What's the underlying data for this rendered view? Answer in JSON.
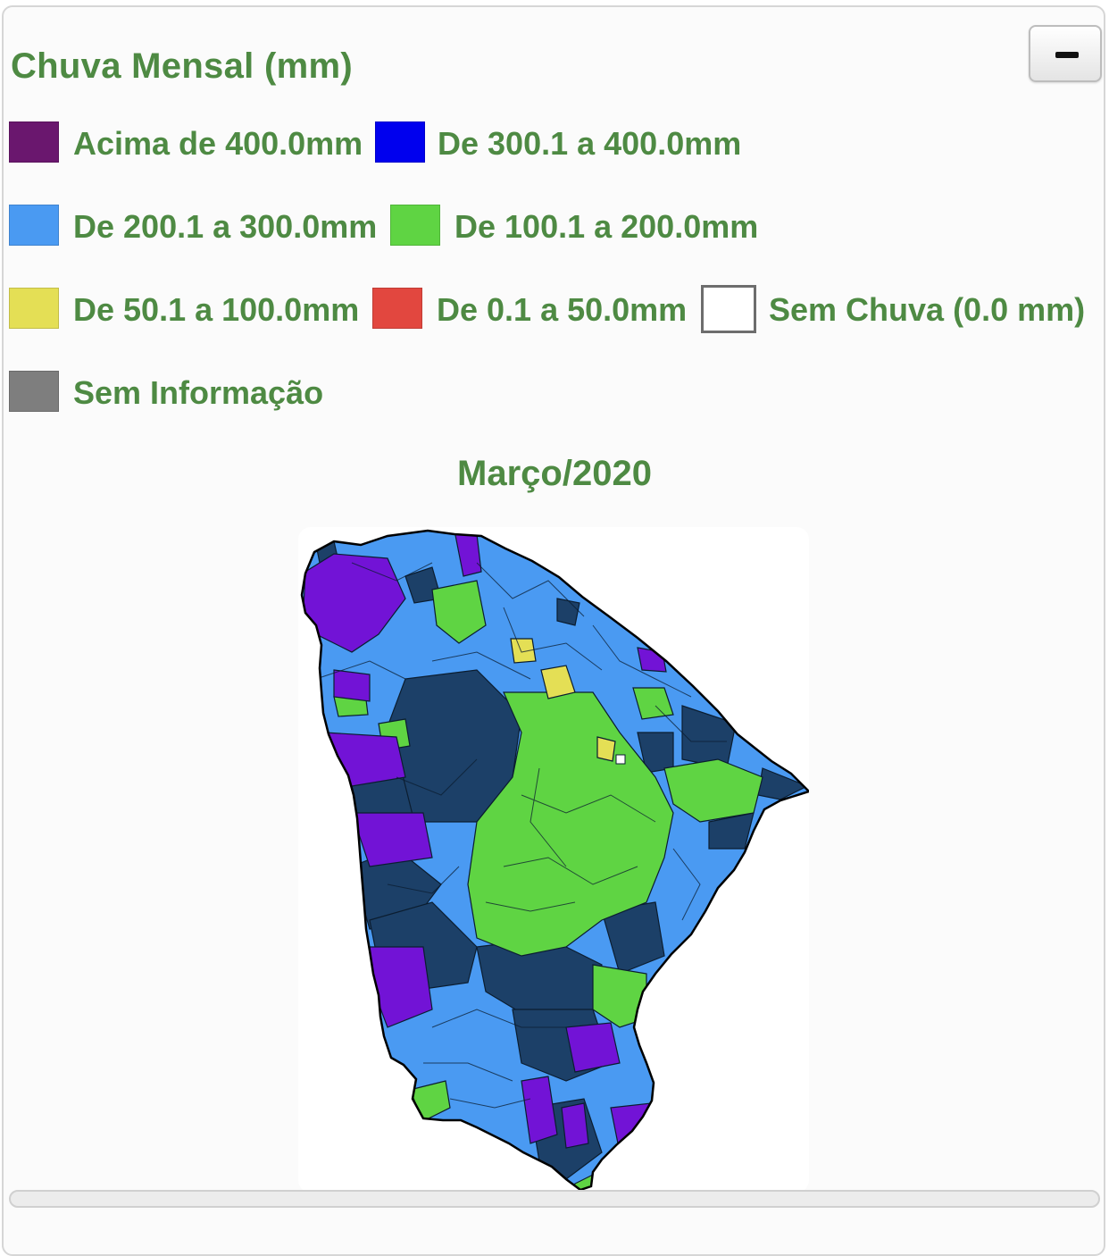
{
  "panel": {
    "title": "Chuva Mensal (mm)",
    "collapse_button_icon": "minus-icon"
  },
  "legend": [
    {
      "label": "Acima de 400.0mm",
      "color": "#6a176e"
    },
    {
      "label": "De 300.1 a 400.0mm",
      "color": "#0000ee"
    },
    {
      "label": "De 200.1 a 300.0mm",
      "color": "#4a9af2"
    },
    {
      "label": "De 100.1 a 200.0mm",
      "color": "#5fd443"
    },
    {
      "label": "De 50.1 a 100.0mm",
      "color": "#e4df55"
    },
    {
      "label": "De 0.1 a 50.0mm",
      "color": "#e2473f"
    },
    {
      "label": "Sem Chuva (0.0 mm)",
      "color": "#ffffff"
    },
    {
      "label": "Sem Informação",
      "color": "#7e7e7e"
    }
  ],
  "map": {
    "title": "Março/2020",
    "region_colors": {
      "navy": "#1c4068",
      "blue": "#4a9af2",
      "green": "#5fd443",
      "purple": "#7213d6",
      "yellow": "#e4df55",
      "white": "#ffffff"
    }
  }
}
